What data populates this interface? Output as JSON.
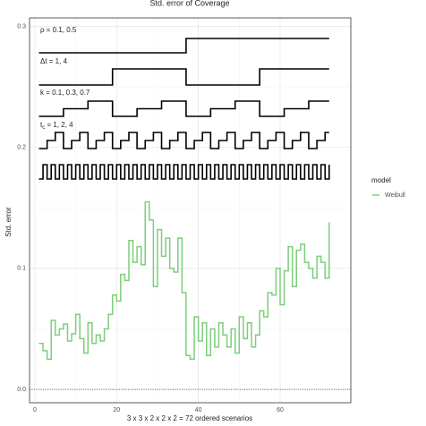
{
  "chart_data": {
    "type": "step",
    "title": "Std. error of Coverage",
    "x_label": "3 x 3 x 2 x 2 x 2 = 72 ordered scenarios",
    "y_label": "Std. error",
    "legend_title": "model",
    "series": [
      {
        "name": "Weibull",
        "color": "#7ccd7c",
        "values": [
          0.038,
          0.032,
          0.025,
          0.057,
          0.045,
          0.05,
          0.054,
          0.04,
          0.046,
          0.062,
          0.042,
          0.03,
          0.055,
          0.038,
          0.045,
          0.04,
          0.05,
          0.062,
          0.078,
          0.073,
          0.095,
          0.09,
          0.123,
          0.105,
          0.118,
          0.103,
          0.155,
          0.14,
          0.085,
          0.132,
          0.11,
          0.125,
          0.1,
          0.097,
          0.125,
          0.08,
          0.028,
          0.025,
          0.06,
          0.04,
          0.055,
          0.028,
          0.05,
          0.035,
          0.055,
          0.045,
          0.035,
          0.05,
          0.03,
          0.06,
          0.042,
          0.055,
          0.035,
          0.045,
          0.065,
          0.06,
          0.08,
          0.078,
          0.1,
          0.07,
          0.098,
          0.118,
          0.085,
          0.115,
          0.12,
          0.105,
          0.1,
          0.092,
          0.11,
          0.105,
          0.092,
          0.138
        ]
      }
    ],
    "design_labels": [
      {
        "text": "ρ = 0.1,  0.5"
      },
      {
        "text": "Δt = 1,  4"
      },
      {
        "text": "k = 0.1,  0.3,  0.7"
      },
      {
        "main": "t",
        "sub": "c",
        "rest": " = 1,  2,  4"
      }
    ],
    "hline": 0,
    "xlim": [
      -1.3,
      77.3
    ],
    "ylim": [
      -0.011,
      0.307
    ],
    "xticks": [
      0,
      20,
      40,
      60
    ],
    "yticks": [
      {
        "value": 0,
        "label": "0.0"
      },
      0.1,
      0.2,
      0.3
    ],
    "grid": true
  }
}
